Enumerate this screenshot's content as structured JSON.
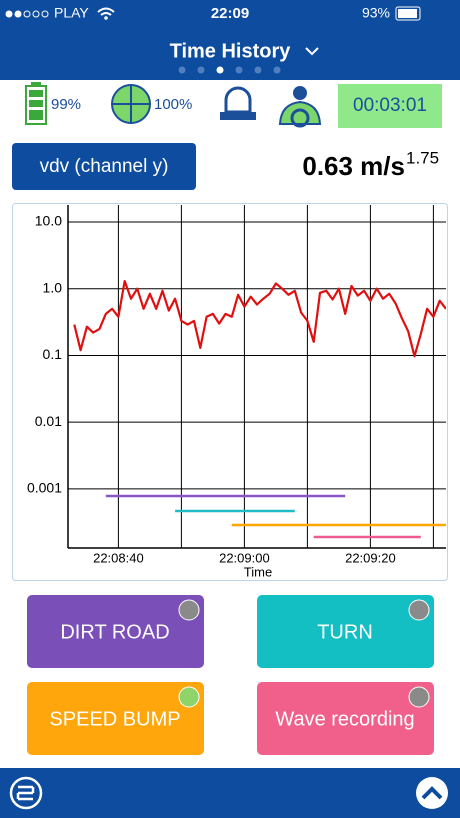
{
  "status_bar": {
    "carrier": "PLAY",
    "time": "22:09",
    "battery": "93%"
  },
  "header": {
    "title": "Time History"
  },
  "indicators": {
    "battery": "99%",
    "gps": "100%",
    "timer": "00:03:01"
  },
  "channel": "vdv (channel y)",
  "reading": {
    "value": "0.63 m/s",
    "exponent": "1.75"
  },
  "chart_data": {
    "type": "line",
    "xlabel": "Time",
    "log_y": true,
    "grid": true,
    "x": [
      "22:08:33",
      "22:08:34",
      "22:08:35",
      "22:08:36",
      "22:08:37",
      "22:08:38",
      "22:08:39",
      "22:08:40",
      "22:08:41",
      "22:08:42",
      "22:08:43",
      "22:08:44",
      "22:08:45",
      "22:08:46",
      "22:08:47",
      "22:08:48",
      "22:08:49",
      "22:08:50",
      "22:08:51",
      "22:08:52",
      "22:08:53",
      "22:08:54",
      "22:08:55",
      "22:08:56",
      "22:08:57",
      "22:08:58",
      "22:08:59",
      "22:09:00",
      "22:09:01",
      "22:09:02",
      "22:09:03",
      "22:09:04",
      "22:09:05",
      "22:09:06",
      "22:09:07",
      "22:09:08",
      "22:09:09",
      "22:09:10",
      "22:09:11",
      "22:09:12",
      "22:09:13",
      "22:09:14",
      "22:09:15",
      "22:09:16",
      "22:09:17",
      "22:09:18",
      "22:09:19",
      "22:09:20",
      "22:09:21",
      "22:09:22",
      "22:09:23",
      "22:09:24",
      "22:09:25",
      "22:09:26",
      "22:09:27",
      "22:09:28",
      "22:09:29",
      "22:09:30",
      "22:09:31",
      "22:09:32"
    ],
    "series": [
      {
        "color": "#e01010",
        "values": [
          0.29,
          0.12,
          0.27,
          0.22,
          0.25,
          0.42,
          0.5,
          0.38,
          1.3,
          0.71,
          1.0,
          0.5,
          0.84,
          0.5,
          0.93,
          0.47,
          0.71,
          0.33,
          0.29,
          0.33,
          0.13,
          0.38,
          0.42,
          0.3,
          0.42,
          0.38,
          0.81,
          0.54,
          0.76,
          0.58,
          0.71,
          0.84,
          1.2,
          1.0,
          0.81,
          0.93,
          0.44,
          0.33,
          0.16,
          0.87,
          0.93,
          0.69,
          1.0,
          0.42,
          1.1,
          0.79,
          0.93,
          0.66,
          1.0,
          0.71,
          0.84,
          0.6,
          0.36,
          0.23,
          0.097,
          0.21,
          0.5,
          0.38,
          0.66,
          0.5
        ]
      }
    ],
    "xlim": [
      "22:08:32",
      "22:09:32"
    ],
    "xticks": [
      {
        "value": "22:08:40",
        "label": "22:08:40"
      },
      {
        "value": "22:08:50",
        "label": null
      },
      {
        "value": "22:09:00",
        "label": "22:09:00"
      },
      {
        "value": "22:09:10",
        "label": null
      },
      {
        "value": "22:09:20",
        "label": "22:09:20"
      },
      {
        "value": "22:09:30",
        "label": null
      }
    ],
    "ylim": [
      0.00013,
      18
    ],
    "yticks": [
      {
        "value": 10,
        "label": "10.0"
      },
      {
        "value": 1,
        "label": "1.0"
      },
      0.1,
      0.01,
      0.001
    ]
  },
  "buttons": [
    {
      "label": "DIRT ROAD",
      "color": "#7b4fb8",
      "bar_color": "#8a55c8",
      "indicator": "#8a8a8a",
      "start": "22:08:38",
      "end": "22:09:16"
    },
    {
      "label": "TURN",
      "color": "#14bfc4",
      "bar_color": "#22bcc8",
      "indicator": "#8a8a8a",
      "start": "22:08:49",
      "end": "22:09:08"
    },
    {
      "label": "SPEED BUMP",
      "color": "#ffa60c",
      "bar_color": "#ffa500",
      "indicator": "#8fd46a",
      "start": "22:08:58",
      "end": null
    },
    {
      "label": "Wave recording",
      "color": "#f0608a",
      "bar_color": "#f05a90",
      "indicator": "#8a8a8a",
      "start": "22:09:11",
      "end": "22:09:28"
    }
  ]
}
